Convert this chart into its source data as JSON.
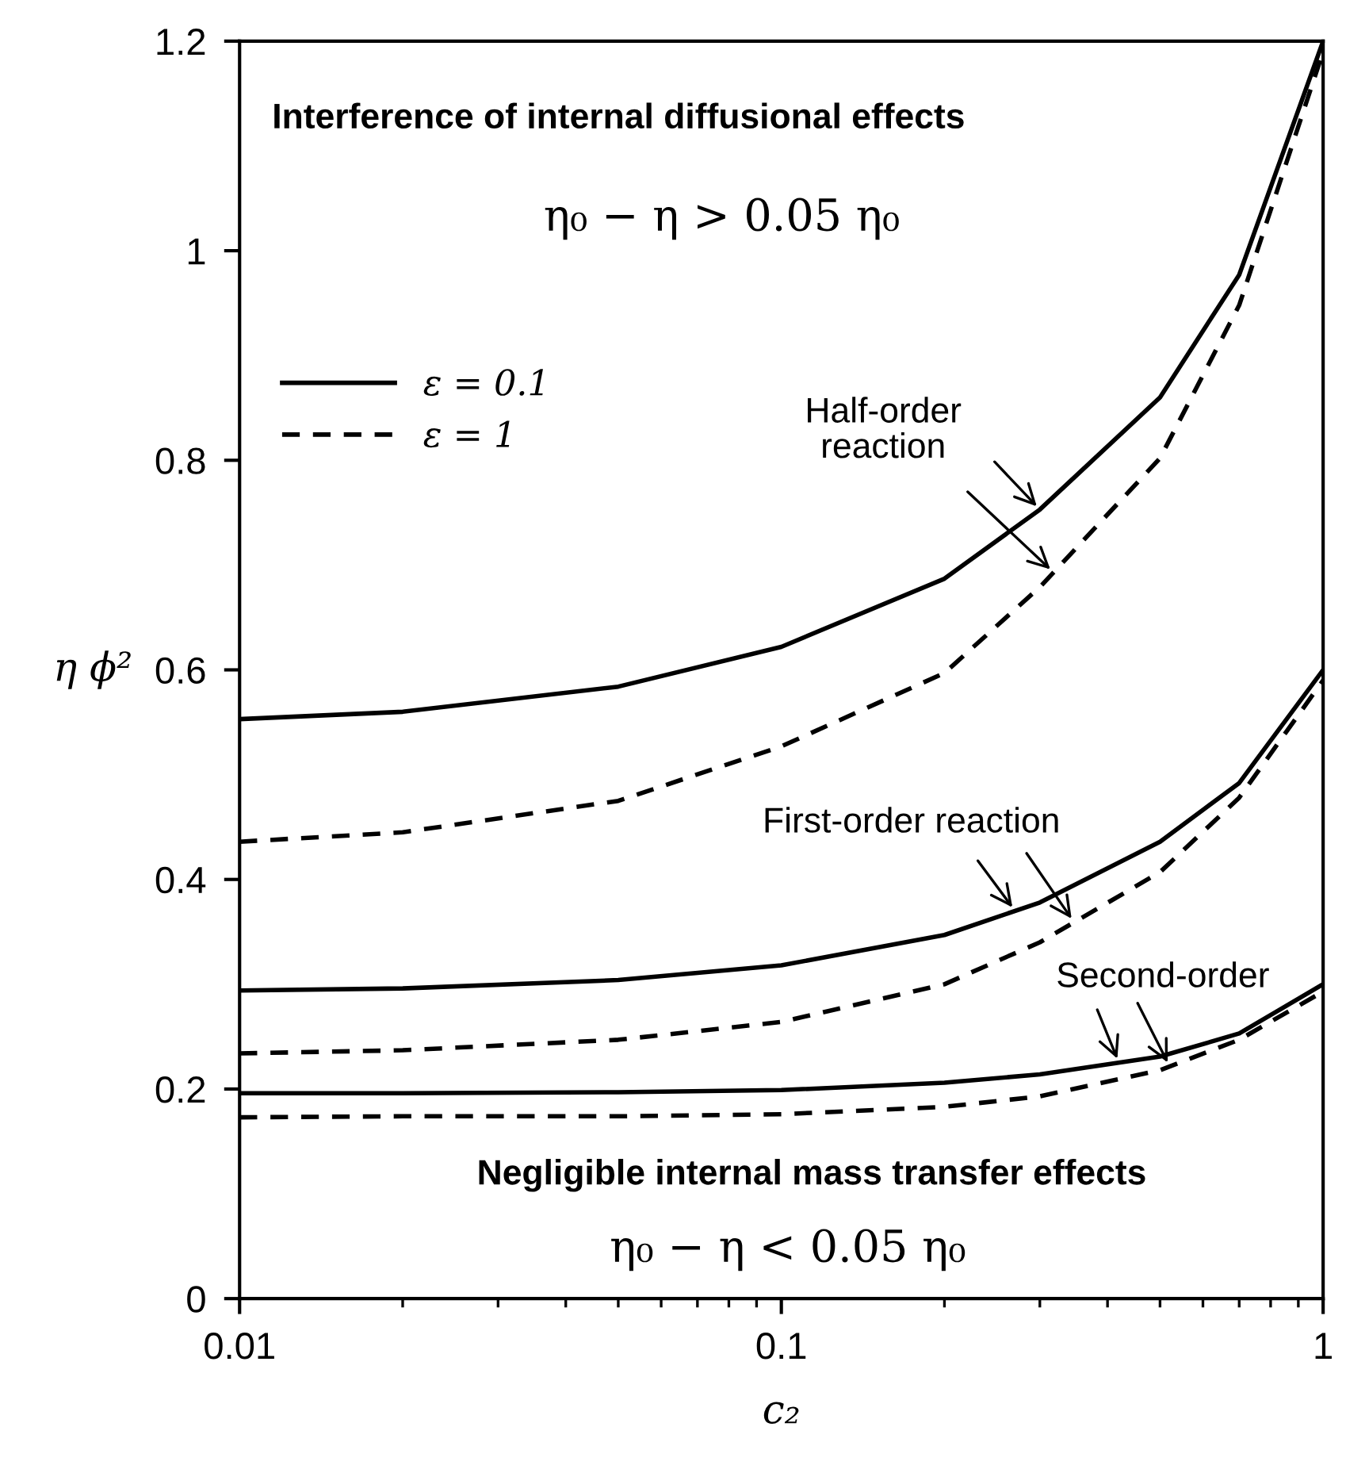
{
  "chart_data": {
    "type": "line",
    "xlabel": "c₂",
    "ylabel": "η ϕ²",
    "log": "x",
    "x": [
      0.01,
      0.02,
      0.05,
      0.1,
      0.2,
      0.3,
      0.5,
      0.7,
      1
    ],
    "xlim": [
      0.01,
      1
    ],
    "xticks": [
      0.01,
      0.1,
      1
    ],
    "ylim": [
      0,
      1.2
    ],
    "yticks": [
      0,
      0.2,
      0.4,
      0.6,
      0.8,
      1,
      1.2
    ],
    "grid": false,
    "legend": "top left",
    "marker": "none",
    "series": [
      {
        "name": "ε = 0.1",
        "color": "#000000",
        "line_style": "solid",
        "values": [
          0.553,
          0.56,
          0.584,
          0.622,
          0.687,
          0.753,
          0.86,
          0.977,
          1.2
        ]
      },
      {
        "name": "ε = 1",
        "color": "#000000",
        "line_style": "dashed",
        "values": [
          0.436,
          0.445,
          0.475,
          0.527,
          0.597,
          0.679,
          0.802,
          0.948,
          1.19
        ]
      },
      {
        "color": "#000000",
        "line_style": "solid",
        "values": [
          0.294,
          0.296,
          0.304,
          0.318,
          0.347,
          0.378,
          0.436,
          0.492,
          0.6
        ]
      },
      {
        "color": "#000000",
        "line_style": "dashed",
        "values": [
          0.234,
          0.237,
          0.247,
          0.264,
          0.3,
          0.34,
          0.407,
          0.478,
          0.59
        ]
      },
      {
        "color": "#000000",
        "line_style": "solid",
        "values": [
          0.196,
          0.196,
          0.197,
          0.199,
          0.206,
          0.214,
          0.231,
          0.253,
          0.3
        ]
      },
      {
        "color": "#000000",
        "line_style": "dashed",
        "values": [
          0.173,
          0.174,
          0.174,
          0.176,
          0.183,
          0.193,
          0.218,
          0.247,
          0.293
        ]
      }
    ],
    "annotations": [
      "Interference of internal diffusional effects",
      "η₀ − η > 0.05 η₀",
      {
        "text": "Half-order\nreaction",
        "x": 0.3,
        "y": 0.753
      },
      {
        "text": "First-order reaction",
        "x": 0.27,
        "y": 0.37
      },
      {
        "text": "Second-order",
        "x": 0.42,
        "y": 0.225
      },
      "Negligible internal mass transfer effects",
      "η₀ − η < 0.05 η₀"
    ]
  }
}
